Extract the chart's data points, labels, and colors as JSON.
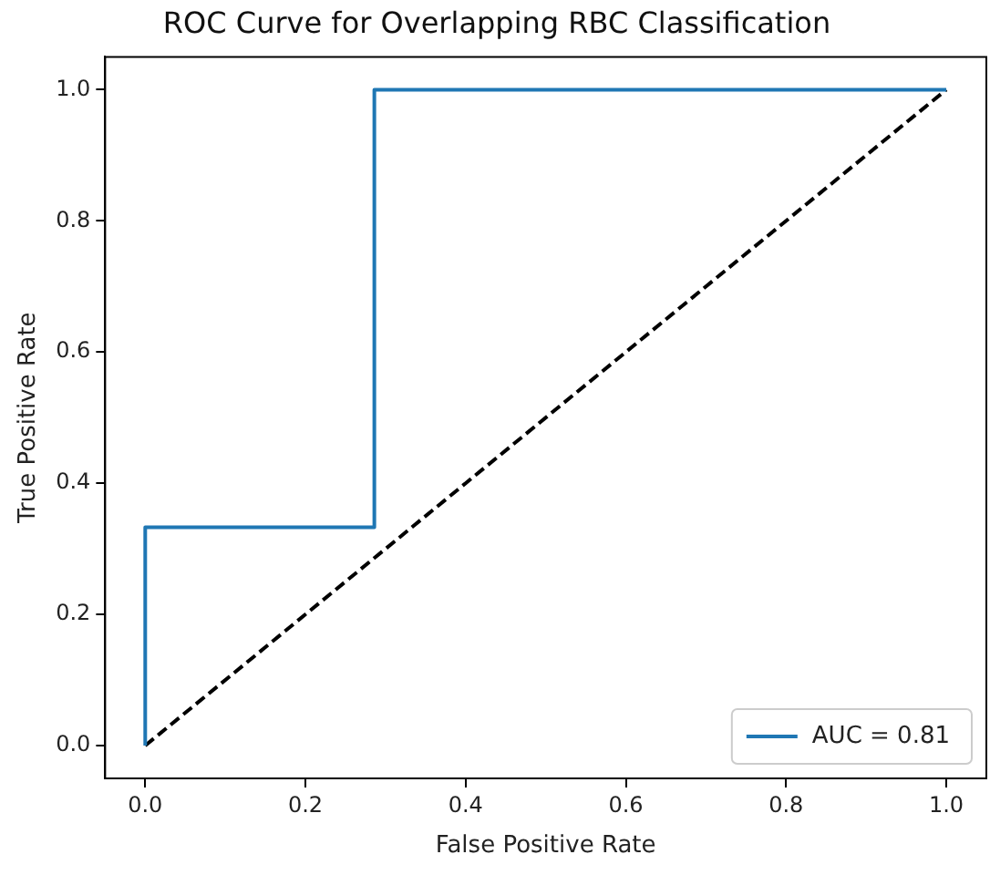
{
  "chart_data": {
    "type": "line",
    "title": "ROC Curve for Overlapping RBC Classification",
    "xlabel": "False Positive Rate",
    "ylabel": "True Positive Rate",
    "series": [
      {
        "name": "AUC = 0.81",
        "color": "#1f77b4",
        "x": [
          0,
          0,
          0.286,
          0.286,
          1
        ],
        "values": [
          0,
          0.333,
          0.333,
          1,
          1
        ]
      },
      {
        "color": "#000000",
        "x": [
          0,
          1
        ],
        "values": [
          0,
          1
        ],
        "line_style": "dashed"
      }
    ],
    "xlim": [
      -0.05,
      1.05
    ],
    "ylim": [
      -0.05,
      1.05
    ],
    "xticks": [
      {
        "value": 0,
        "label": "0.0"
      },
      {
        "value": 0.2,
        "label": "0.2"
      },
      {
        "value": 0.4,
        "label": "0.4"
      },
      {
        "value": 0.6,
        "label": "0.6"
      },
      {
        "value": 0.8,
        "label": "0.8"
      },
      {
        "value": 1,
        "label": "1.0"
      }
    ],
    "yticks": [
      {
        "value": 0,
        "label": "0.0"
      },
      {
        "value": 0.2,
        "label": "0.2"
      },
      {
        "value": 0.4,
        "label": "0.4"
      },
      {
        "value": 0.6,
        "label": "0.6"
      },
      {
        "value": 0.8,
        "label": "0.8"
      },
      {
        "value": 1,
        "label": "1.0"
      }
    ],
    "grid": false,
    "legend": "bottom right",
    "marker": "none",
    "line_style": "solid"
  }
}
